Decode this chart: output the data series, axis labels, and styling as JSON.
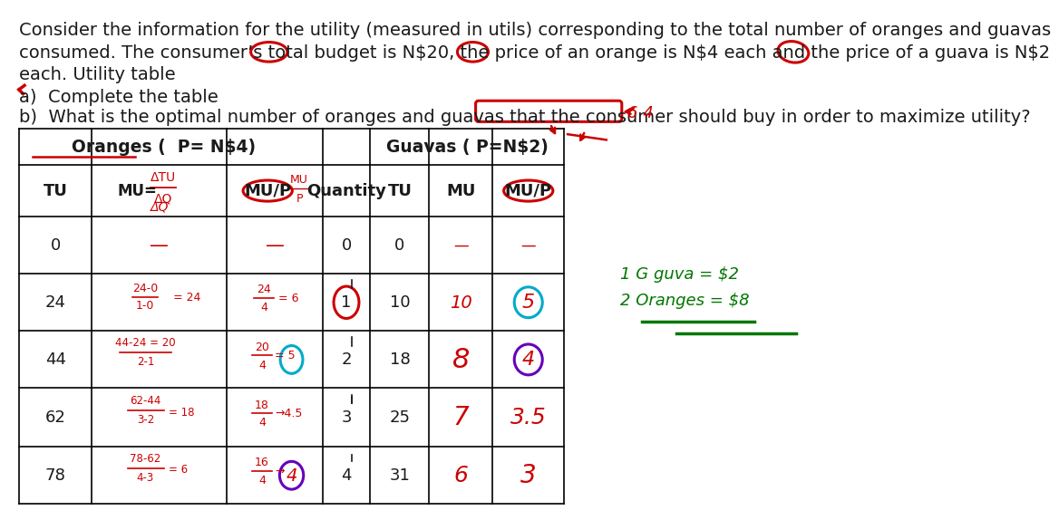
{
  "bg_color": "#ffffff",
  "text_color": "#1a1a1a",
  "red_color": "#cc0000",
  "cyan_color": "#00aacc",
  "purple_color": "#6600bb",
  "green_color": "#007700",
  "line1": "Consider the information for the utility (measured in utils) corresponding to the total number of oranges and guavas",
  "line2": "consumed. The consumer’s total budget is N$20, the price of an orange is N$4 each and the price of a guava is N$2",
  "line3": "each. Utility table",
  "line4": "a)  Complete the table",
  "line5": "b)  What is the optimal number of oranges and guavas that the consumer should buy in order to maximize utility?",
  "orange_header": "Oranges (  P= N$4)",
  "guava_header": "Guavas ( P=N$2)",
  "orange_tu": [
    "0",
    "24",
    "44",
    "62",
    "78"
  ],
  "quantity": [
    "0",
    "1",
    "2",
    "3",
    "4"
  ],
  "guava_tu": [
    "0",
    "10",
    "18",
    "25",
    "31"
  ]
}
